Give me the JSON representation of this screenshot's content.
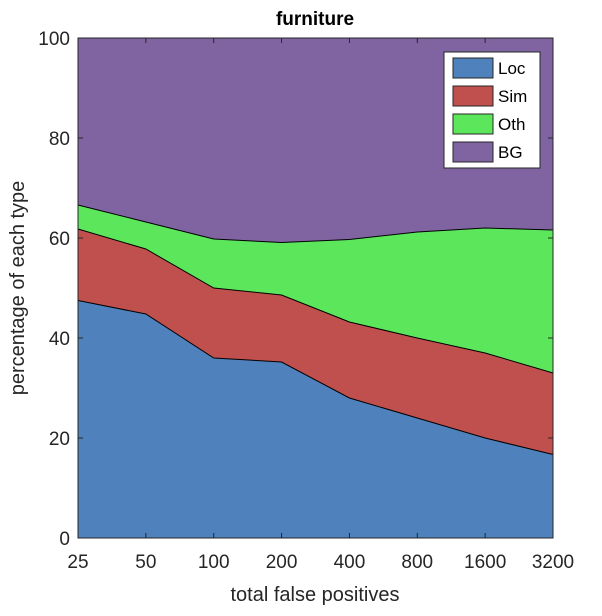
{
  "chart_data": {
    "type": "area",
    "title": "furniture",
    "xlabel": "total false positives",
    "ylabel": "percentage of each type",
    "categories": [
      "25",
      "50",
      "100",
      "200",
      "400",
      "800",
      "1600",
      "3200"
    ],
    "ylim": [
      0,
      100
    ],
    "yticks": [
      "0",
      "20",
      "40",
      "60",
      "80",
      "100"
    ],
    "stacked": true,
    "legend_position": "top-right",
    "grid": false,
    "series": [
      {
        "name": "Loc",
        "color": "#4f81bd",
        "values": [
          47.5,
          44.8,
          36.0,
          35.2,
          28.0,
          24.0,
          20.0,
          16.7
        ]
      },
      {
        "name": "Sim",
        "color": "#c0504d",
        "values": [
          14.3,
          13.0,
          14.0,
          13.4,
          15.2,
          16.0,
          17.0,
          16.3
        ]
      },
      {
        "name": "Oth",
        "color": "#5ce65c",
        "values": [
          4.8,
          5.4,
          9.8,
          10.5,
          16.5,
          21.2,
          25.0,
          28.6
        ]
      },
      {
        "name": "BG",
        "color": "#8064a2",
        "values": [
          33.4,
          36.8,
          40.2,
          40.9,
          40.3,
          38.8,
          38.0,
          38.4
        ]
      }
    ]
  }
}
